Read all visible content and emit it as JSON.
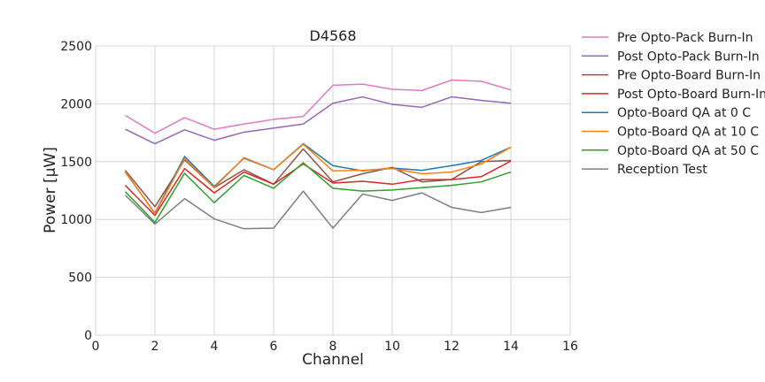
{
  "chart_data": {
    "type": "line",
    "title": "D4568",
    "xlabel": "Channel",
    "ylabel": "Power [μW]",
    "xlim": [
      0,
      16
    ],
    "ylim": [
      0,
      2500
    ],
    "xticks": [
      0,
      2,
      4,
      6,
      8,
      10,
      12,
      14,
      16
    ],
    "yticks": [
      0,
      500,
      1000,
      1500,
      2000,
      2500
    ],
    "grid": true,
    "legend_position": "outside-right",
    "x": [
      1,
      2,
      3,
      4,
      5,
      6,
      7,
      8,
      9,
      10,
      11,
      12,
      13,
      14
    ],
    "series": [
      {
        "name": "Pre Opto-Pack Burn-In",
        "color": "#e377c2",
        "values": [
          1900,
          1745,
          1880,
          1780,
          1825,
          1865,
          1890,
          2160,
          2170,
          2125,
          2115,
          2205,
          2195,
          2120
        ]
      },
      {
        "name": "Post Opto-Pack Burn-In",
        "color": "#9467bd",
        "values": [
          1780,
          1655,
          1775,
          1685,
          1755,
          1790,
          1825,
          2005,
          2060,
          1995,
          1970,
          2060,
          2030,
          2005
        ]
      },
      {
        "name": "Pre Opto-Board Burn-In",
        "color": "#8c564b",
        "values": [
          1425,
          1110,
          1515,
          1275,
          1430,
          1305,
          1610,
          1325,
          1395,
          1450,
          1325,
          1345,
          1500,
          1510
        ]
      },
      {
        "name": "Post Opto-Board Burn-In",
        "color": "#d62728",
        "values": [
          1295,
          1035,
          1440,
          1230,
          1410,
          1305,
          1480,
          1315,
          1330,
          1305,
          1345,
          1345,
          1370,
          1505
        ]
      },
      {
        "name": "Opto-Board QA at 0 C",
        "color": "#1f77b4",
        "values": [
          1410,
          1055,
          1545,
          1285,
          1530,
          1430,
          1655,
          1465,
          1420,
          1445,
          1425,
          1465,
          1510,
          1625
        ]
      },
      {
        "name": "Opto-Board QA at 10 C",
        "color": "#ff7f0e",
        "values": [
          1415,
          1050,
          1525,
          1275,
          1535,
          1430,
          1650,
          1420,
          1425,
          1440,
          1395,
          1410,
          1480,
          1625
        ]
      },
      {
        "name": "Opto-Board QA at 50 C",
        "color": "#2ca02c",
        "values": [
          1240,
          975,
          1400,
          1145,
          1380,
          1270,
          1490,
          1270,
          1245,
          1255,
          1275,
          1295,
          1325,
          1410
        ]
      },
      {
        "name": "Reception Test",
        "color": "#7f7f7f",
        "values": [
          1210,
          960,
          1180,
          1005,
          920,
          925,
          1245,
          925,
          1220,
          1165,
          1230,
          1105,
          1060,
          1105
        ]
      }
    ]
  }
}
